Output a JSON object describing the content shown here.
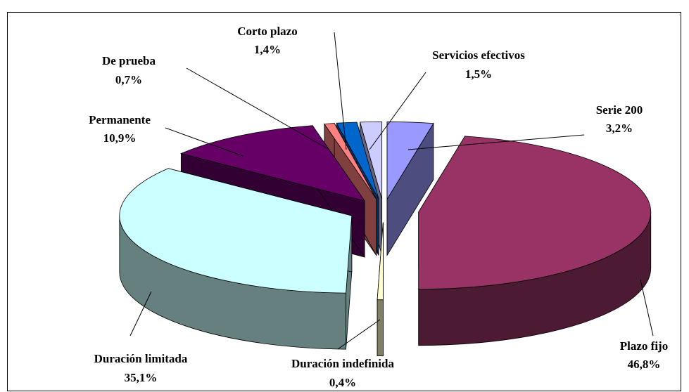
{
  "chart_data": {
    "type": "pie",
    "categories": [
      "Serie 200",
      "Plazo fijo",
      "Duración indefinida",
      "Duración limitada",
      "Permanente",
      "De prueba",
      "Corto plazo",
      "Servicios efectivos"
    ],
    "values": [
      3.2,
      46.8,
      0.4,
      35.1,
      10.9,
      0.7,
      1.4,
      1.5
    ],
    "value_labels": [
      "3,2%",
      "46,8%",
      "0,4%",
      "35,1%",
      "10,9%",
      "0,7%",
      "1,4%",
      "1,5%"
    ],
    "colors": [
      "#9999ff",
      "#993366",
      "#ffffcc",
      "#ccffff",
      "#660066",
      "#ff8080",
      "#0066cc",
      "#ccccff"
    ]
  }
}
